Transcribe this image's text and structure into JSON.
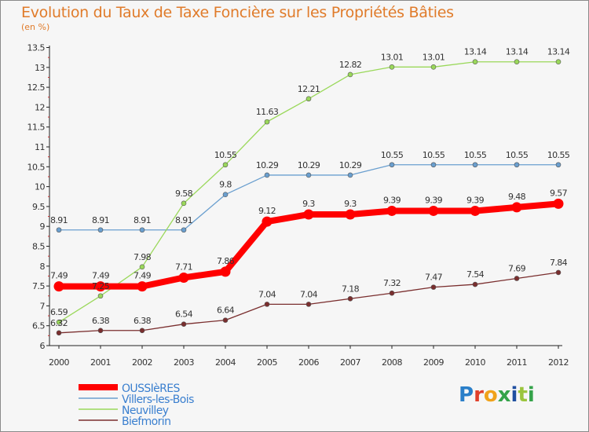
{
  "title": "Evolution du Taux de Taxe Foncière sur les Propriétés Bâties",
  "unit_label": "(en %)",
  "logo": {
    "letters": [
      "P",
      "r",
      "o",
      "x",
      "i",
      "t",
      "i"
    ],
    "colors": [
      "#2a7fc9",
      "#e0402b",
      "#f0a21a",
      "#35a34a",
      "#1f4fa0",
      "#9bc53d",
      "#35a34a"
    ]
  },
  "chart_data": {
    "type": "line",
    "title": "Evolution du Taux de Taxe Foncière sur les Propriétés Bâties",
    "ylabel": "(en %)",
    "xlabel": "",
    "x": [
      "2000",
      "2001",
      "2002",
      "2003",
      "2004",
      "2005",
      "2006",
      "2007",
      "2008",
      "2009",
      "2010",
      "2011",
      "2012"
    ],
    "ylim": [
      6,
      13.5
    ],
    "yticks": [
      "6",
      "6.5",
      "7",
      "7.5",
      "8",
      "8.5",
      "9",
      "9.5",
      "10",
      "10.5",
      "11",
      "11.5",
      "12",
      "12.5",
      "13",
      "13.5"
    ],
    "grid": false,
    "legend_position": "bottom-left",
    "series": [
      {
        "name": "OUSSIèRES",
        "color": "#ff0000",
        "values": [
          7.49,
          7.49,
          7.49,
          7.71,
          7.86,
          9.12,
          9.3,
          9.3,
          9.39,
          9.39,
          9.39,
          9.48,
          9.57
        ],
        "labels": [
          "7.49",
          "7.49",
          "7.49",
          "7.71",
          "7.86",
          "9.12",
          "9.3",
          "9.3",
          "9.39",
          "9.39",
          "9.39",
          "9.48",
          "9.57"
        ]
      },
      {
        "name": "Villers-les-Bois",
        "color": "#6a9fcf",
        "values": [
          8.91,
          8.91,
          8.91,
          8.91,
          9.8,
          10.29,
          10.29,
          10.29,
          10.55,
          10.55,
          10.55,
          10.55,
          10.55
        ],
        "labels": [
          "8.91",
          "8.91",
          "8.91",
          "8.91",
          "9.8",
          "10.29",
          "10.29",
          "10.29",
          "10.55",
          "10.55",
          "10.55",
          "10.55",
          "10.55"
        ]
      },
      {
        "name": "Neuvilley",
        "color": "#9ad85a",
        "values": [
          6.59,
          7.25,
          7.98,
          9.58,
          10.55,
          11.63,
          12.21,
          12.82,
          13.01,
          13.01,
          13.14,
          13.14,
          13.14
        ],
        "labels": [
          "6.59",
          "7.25",
          "7.98",
          "9.58",
          "10.55",
          "11.63",
          "12.21",
          "12.82",
          "13.01",
          "13.01",
          "13.14",
          "13.14",
          "13.14"
        ]
      },
      {
        "name": "Biefmorin",
        "color": "#7a2e2e",
        "values": [
          6.32,
          6.38,
          6.38,
          6.54,
          6.64,
          7.04,
          7.04,
          7.18,
          7.32,
          7.47,
          7.54,
          7.69,
          7.84
        ],
        "labels": [
          "6.32",
          "6.38",
          "6.38",
          "6.54",
          "6.64",
          "7.04",
          "7.04",
          "7.18",
          "7.32",
          "7.47",
          "7.54",
          "7.69",
          "7.84"
        ]
      }
    ]
  }
}
